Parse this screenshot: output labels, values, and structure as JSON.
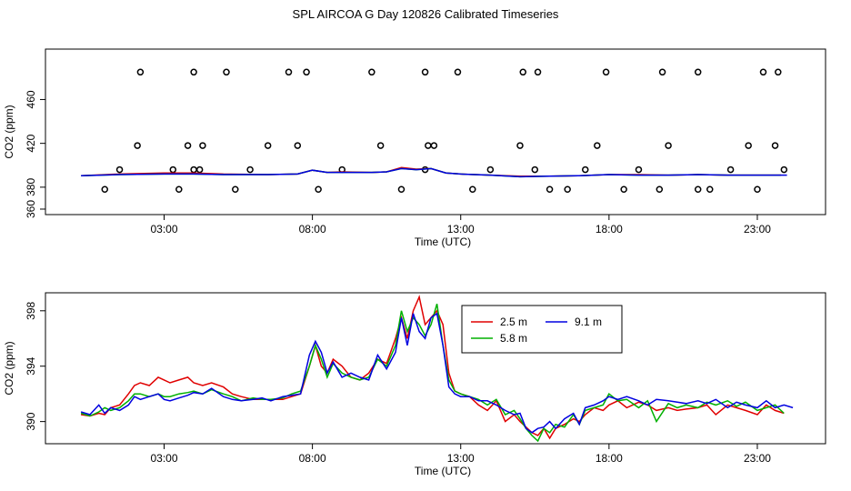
{
  "title": "SPL AIRCOA G  Day 120826  Calibrated Timeseries",
  "chart_data": [
    {
      "type": "line",
      "ylabel": "CO2 (ppm)",
      "xlabel": "Time (UTC)",
      "xlim": [
        -1.0,
        25.3
      ],
      "ylim": [
        355,
        506
      ],
      "x_ticks": [
        3,
        8,
        13,
        18,
        23
      ],
      "x_tick_labels": [
        "03:00",
        "08:00",
        "13:00",
        "18:00",
        "23:00"
      ],
      "y_ticks": [
        360,
        380,
        420,
        460
      ],
      "y_tick_labels": [
        "360",
        "380",
        "420",
        "460"
      ],
      "series": [
        {
          "color": "#e00000",
          "x": [
            0.2,
            1.5,
            3.0,
            4.0,
            5.0,
            6.5,
            7.5,
            8.0,
            8.5,
            9.0,
            10.0,
            10.5,
            11.0,
            11.5,
            12.0,
            12.5,
            13.0,
            14.0,
            15.0,
            16.0,
            17.0,
            18.0,
            19.0,
            20.0,
            21.0,
            22.0,
            23.0,
            23.8
          ],
          "y": [
            390.5,
            392.0,
            393.0,
            393.0,
            392.0,
            391.5,
            392.0,
            395.5,
            393.5,
            394.0,
            393.5,
            394.0,
            398.0,
            396.5,
            397.0,
            393.0,
            392.0,
            391.0,
            390.0,
            390.0,
            390.5,
            391.5,
            391.5,
            391.0,
            391.5,
            391.0,
            391.0,
            391.0
          ]
        },
        {
          "color": "#00b000",
          "x": [
            0.2,
            1.5,
            3.0,
            4.0,
            5.0,
            6.5,
            7.5,
            8.0,
            8.5,
            9.0,
            10.0,
            10.5,
            11.0,
            11.5,
            12.0,
            12.5,
            13.0,
            14.0,
            15.0,
            16.0,
            17.0,
            18.0,
            19.0,
            20.0,
            21.0,
            22.0,
            23.0,
            23.8
          ],
          "y": [
            390.5,
            391.5,
            392.0,
            392.0,
            391.5,
            391.5,
            392.0,
            395.5,
            393.5,
            393.5,
            393.5,
            394.0,
            397.0,
            396.0,
            397.0,
            393.0,
            392.0,
            391.0,
            389.5,
            390.0,
            390.5,
            391.5,
            391.0,
            391.0,
            391.5,
            391.0,
            391.0,
            391.0
          ]
        },
        {
          "color": "#0000e0",
          "x": [
            0.2,
            1.5,
            3.0,
            4.0,
            5.0,
            6.5,
            7.5,
            8.0,
            8.5,
            9.0,
            10.0,
            10.5,
            11.0,
            11.5,
            12.0,
            12.5,
            13.0,
            14.0,
            15.0,
            16.0,
            17.0,
            18.0,
            19.0,
            20.0,
            21.0,
            22.0,
            23.0,
            24.0
          ],
          "y": [
            390.5,
            391.5,
            392.0,
            392.0,
            391.5,
            391.5,
            392.0,
            395.5,
            393.5,
            393.5,
            393.5,
            394.0,
            397.0,
            396.0,
            397.0,
            393.0,
            392.0,
            391.0,
            389.5,
            390.0,
            390.5,
            391.5,
            391.0,
            391.0,
            391.5,
            391.0,
            391.0,
            391.0
          ]
        }
      ],
      "points": {
        "x": [
          1.5,
          2.1,
          3.3,
          4.3,
          1.0,
          4.2,
          6.5,
          5.9,
          7.5,
          8.2,
          3.5,
          3.8,
          4.0,
          5.4,
          9.0,
          10.3,
          11.0,
          11.8,
          11.9,
          12.1,
          13.4,
          14.0,
          15.0,
          15.5,
          16.0,
          16.6,
          17.2,
          17.6,
          18.5,
          19.0,
          19.7,
          20.0,
          21.0,
          21.4,
          22.1,
          22.7,
          23.0,
          23.6,
          23.9
        ],
        "y": [
          396,
          418,
          396,
          418,
          378,
          396,
          418,
          396,
          418,
          378,
          378,
          418,
          396,
          378,
          396,
          418,
          378,
          396,
          418,
          418,
          378,
          396,
          418,
          396,
          378,
          378,
          396,
          418,
          378,
          396,
          378,
          418,
          378,
          378,
          396,
          418,
          378,
          418,
          396
        ]
      },
      "points_top": {
        "x": [
          2.2,
          4.0,
          5.1,
          7.2,
          7.8,
          10.0,
          11.8,
          12.9,
          15.1,
          15.6,
          17.9,
          19.8,
          21.0,
          23.2,
          23.7
        ],
        "y": [
          485,
          485,
          485,
          485,
          485,
          485,
          485,
          485,
          485,
          485,
          485,
          485,
          485,
          485,
          485
        ]
      }
    },
    {
      "type": "line",
      "ylabel": "CO2 (ppm)",
      "xlabel": "Time (UTC)",
      "xlim": [
        -1.0,
        25.3
      ],
      "ylim": [
        388.4,
        399.3
      ],
      "x_ticks": [
        3,
        8,
        13,
        18,
        23
      ],
      "x_tick_labels": [
        "03:00",
        "08:00",
        "13:00",
        "18:00",
        "23:00"
      ],
      "y_ticks": [
        390,
        394,
        398
      ],
      "y_tick_labels": [
        "390",
        "394",
        "398"
      ],
      "legend": {
        "position": "top-center",
        "entries": [
          {
            "name": "2.5 m",
            "color": "#e00000"
          },
          {
            "name": "9.1 m",
            "color": "#0000e0"
          },
          {
            "name": "5.8 m",
            "color": "#00b000"
          }
        ]
      },
      "series": [
        {
          "name": "2.5 m",
          "color": "#e00000",
          "x": [
            0.2,
            0.5,
            0.8,
            1.0,
            1.2,
            1.5,
            1.8,
            2.0,
            2.2,
            2.5,
            2.8,
            3.0,
            3.2,
            3.5,
            3.8,
            4.0,
            4.3,
            4.6,
            5.0,
            5.3,
            5.6,
            6.0,
            6.3,
            6.6,
            7.0,
            7.3,
            7.6,
            7.9,
            8.1,
            8.3,
            8.5,
            8.7,
            9.0,
            9.3,
            9.6,
            9.9,
            10.2,
            10.5,
            10.8,
            11.0,
            11.2,
            11.4,
            11.6,
            11.8,
            12.0,
            12.2,
            12.4,
            12.6,
            12.8,
            13.0,
            13.3,
            13.6,
            13.9,
            14.2,
            14.5,
            14.8,
            15.0,
            15.2,
            15.4,
            15.6,
            15.8,
            16.0,
            16.2,
            16.5,
            16.8,
            17.0,
            17.2,
            17.5,
            17.8,
            18.0,
            18.3,
            18.6,
            19.0,
            19.3,
            19.6,
            20.0,
            20.3,
            20.6,
            21.0,
            21.3,
            21.6,
            22.0,
            22.3,
            22.6,
            23.0,
            23.3,
            23.6,
            23.9
          ],
          "y": [
            390.5,
            390.4,
            390.6,
            390.5,
            391.0,
            391.2,
            392.0,
            392.6,
            392.8,
            392.6,
            393.2,
            393.0,
            392.8,
            393.0,
            393.2,
            392.8,
            392.6,
            392.8,
            392.5,
            392.0,
            391.8,
            391.6,
            391.6,
            391.6,
            391.6,
            391.8,
            392.0,
            394.0,
            395.5,
            394.0,
            393.5,
            394.5,
            394.0,
            393.2,
            393.0,
            393.5,
            394.5,
            394.2,
            396.0,
            397.5,
            396.0,
            398.0,
            399.0,
            397.0,
            397.5,
            398.0,
            397.0,
            393.5,
            392.2,
            392.0,
            391.8,
            391.2,
            390.8,
            391.5,
            390.0,
            390.5,
            390.0,
            389.6,
            389.2,
            389.0,
            389.5,
            388.8,
            389.5,
            389.8,
            390.2,
            390.0,
            390.5,
            391.0,
            390.8,
            391.2,
            391.5,
            391.0,
            391.4,
            391.2,
            390.8,
            391.0,
            390.8,
            390.9,
            391.0,
            391.2,
            390.5,
            391.2,
            391.0,
            390.8,
            390.5,
            391.2,
            390.8,
            390.6
          ]
        },
        {
          "name": "5.8 m",
          "color": "#00b000",
          "x": [
            0.2,
            0.5,
            0.8,
            1.0,
            1.2,
            1.5,
            1.8,
            2.0,
            2.2,
            2.5,
            2.8,
            3.0,
            3.2,
            3.5,
            3.8,
            4.0,
            4.3,
            4.6,
            5.0,
            5.3,
            5.6,
            6.0,
            6.3,
            6.6,
            7.0,
            7.3,
            7.6,
            7.9,
            8.1,
            8.3,
            8.5,
            8.7,
            9.0,
            9.3,
            9.6,
            9.9,
            10.2,
            10.5,
            10.8,
            11.0,
            11.2,
            11.4,
            11.6,
            11.8,
            12.0,
            12.2,
            12.4,
            12.6,
            12.8,
            13.0,
            13.3,
            13.6,
            13.9,
            14.2,
            14.5,
            14.8,
            15.0,
            15.2,
            15.4,
            15.6,
            15.8,
            16.0,
            16.2,
            16.5,
            16.8,
            17.0,
            17.2,
            17.5,
            17.8,
            18.0,
            18.3,
            18.6,
            19.0,
            19.3,
            19.6,
            20.0,
            20.3,
            20.6,
            21.0,
            21.3,
            21.6,
            22.0,
            22.3,
            22.6,
            23.0,
            23.3,
            23.6,
            23.9
          ],
          "y": [
            390.6,
            390.4,
            390.7,
            391.0,
            390.8,
            391.0,
            391.5,
            392.0,
            392.0,
            391.8,
            392.0,
            391.8,
            391.8,
            392.0,
            392.1,
            392.2,
            392.0,
            392.3,
            392.0,
            391.8,
            391.5,
            391.7,
            391.6,
            391.6,
            391.7,
            392.0,
            392.2,
            394.0,
            395.5,
            394.5,
            393.2,
            394.2,
            393.5,
            393.2,
            393.0,
            393.2,
            394.5,
            394.0,
            395.5,
            398.0,
            396.5,
            397.5,
            397.0,
            396.2,
            397.0,
            398.5,
            395.5,
            393.0,
            392.2,
            392.0,
            391.8,
            391.6,
            391.2,
            391.6,
            390.5,
            390.8,
            390.2,
            389.5,
            389.0,
            388.6,
            389.5,
            389.2,
            389.8,
            389.6,
            390.5,
            389.8,
            390.8,
            391.0,
            391.2,
            392.0,
            391.5,
            391.6,
            391.0,
            391.5,
            390.0,
            391.3,
            391.0,
            391.2,
            391.0,
            391.4,
            391.2,
            391.5,
            391.1,
            391.4,
            390.8,
            391.0,
            391.2,
            390.6
          ]
        },
        {
          "name": "9.1 m",
          "color": "#0000e0",
          "x": [
            0.2,
            0.5,
            0.8,
            1.0,
            1.2,
            1.5,
            1.8,
            2.0,
            2.2,
            2.5,
            2.8,
            3.0,
            3.2,
            3.5,
            3.8,
            4.0,
            4.3,
            4.6,
            5.0,
            5.3,
            5.6,
            6.0,
            6.3,
            6.6,
            7.0,
            7.3,
            7.6,
            7.9,
            8.1,
            8.3,
            8.5,
            8.7,
            9.0,
            9.3,
            9.6,
            9.9,
            10.2,
            10.5,
            10.8,
            11.0,
            11.2,
            11.4,
            11.6,
            11.8,
            12.0,
            12.2,
            12.4,
            12.6,
            12.8,
            13.0,
            13.3,
            13.6,
            13.9,
            14.2,
            14.5,
            14.8,
            15.0,
            15.2,
            15.4,
            15.6,
            15.8,
            16.0,
            16.2,
            16.5,
            16.8,
            17.0,
            17.2,
            17.5,
            17.8,
            18.0,
            18.3,
            18.6,
            19.0,
            19.3,
            19.6,
            20.0,
            20.3,
            20.6,
            21.0,
            21.3,
            21.6,
            22.0,
            22.3,
            22.6,
            23.0,
            23.3,
            23.6,
            23.9,
            24.2
          ],
          "y": [
            390.7,
            390.5,
            391.2,
            390.6,
            391.0,
            390.8,
            391.2,
            391.8,
            391.6,
            391.8,
            392.0,
            391.6,
            391.5,
            391.7,
            391.9,
            392.1,
            392.0,
            392.4,
            391.8,
            391.6,
            391.5,
            391.6,
            391.7,
            391.5,
            391.8,
            391.9,
            392.0,
            394.8,
            395.8,
            395.0,
            393.5,
            394.3,
            393.2,
            393.5,
            393.2,
            393.0,
            394.8,
            393.8,
            395.0,
            397.5,
            395.5,
            397.8,
            396.5,
            396.0,
            397.5,
            397.8,
            395.5,
            392.5,
            392.0,
            391.8,
            391.8,
            391.5,
            391.5,
            391.2,
            390.8,
            390.5,
            390.6,
            389.5,
            389.2,
            389.5,
            389.6,
            390.0,
            389.5,
            390.2,
            390.6,
            389.8,
            391.0,
            391.2,
            391.5,
            391.8,
            391.6,
            391.8,
            391.5,
            391.2,
            391.6,
            391.5,
            391.4,
            391.3,
            391.5,
            391.3,
            391.6,
            391.0,
            391.4,
            391.2,
            391.0,
            391.5,
            391.0,
            391.2,
            391.0
          ]
        }
      ]
    }
  ]
}
